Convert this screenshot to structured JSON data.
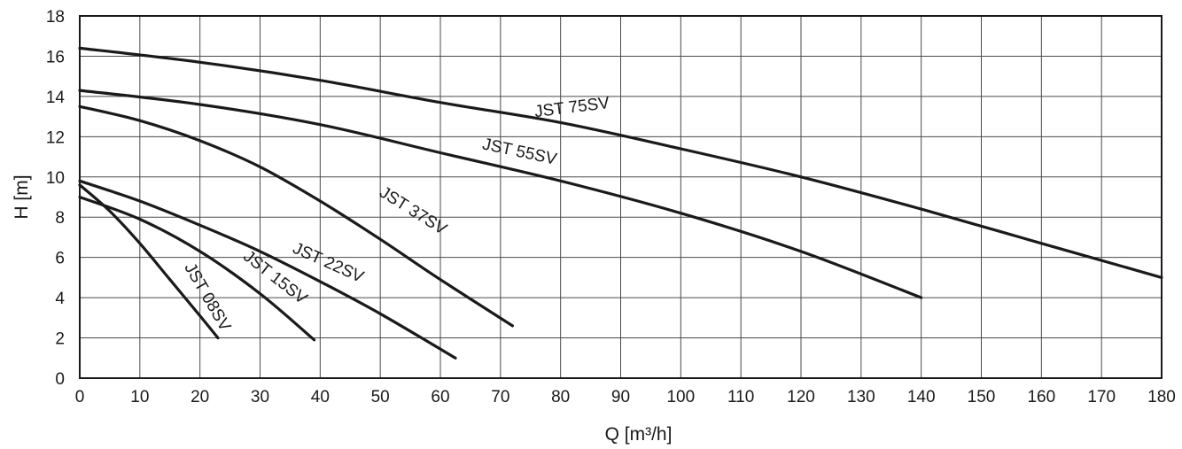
{
  "chart_data": {
    "type": "line",
    "title": "",
    "xlabel": "Q  [m³/h]",
    "ylabel": "H [m]",
    "xlim": [
      0,
      180
    ],
    "ylim": [
      0,
      18
    ],
    "xticks": [
      "0",
      "10",
      "20",
      "30",
      "40",
      "50",
      "60",
      "70",
      "80",
      "90",
      "100",
      "110",
      "120",
      "130",
      "140",
      "150",
      "160",
      "170",
      "180"
    ],
    "yticks": [
      "0",
      "2",
      "4",
      "6",
      "8",
      "10",
      "12",
      "14",
      "16",
      "18"
    ],
    "grid": true,
    "legend": "none",
    "series": [
      {
        "name": "JST 75SV",
        "x": [
          0,
          20,
          40,
          60,
          80,
          100,
          120,
          140,
          160,
          180
        ],
        "y": [
          16.4,
          15.7,
          14.8,
          13.7,
          12.7,
          11.4,
          10.0,
          8.4,
          6.7,
          5.0
        ]
      },
      {
        "name": "JST 55SV",
        "x": [
          0,
          20,
          40,
          60,
          80,
          100,
          120,
          140
        ],
        "y": [
          14.3,
          13.6,
          12.6,
          11.2,
          9.8,
          8.2,
          6.3,
          4.0
        ]
      },
      {
        "name": "JST 37SV",
        "x": [
          0,
          10,
          20,
          30,
          40,
          50,
          60,
          72
        ],
        "y": [
          13.5,
          12.8,
          11.8,
          10.5,
          8.8,
          6.9,
          4.9,
          2.6
        ]
      },
      {
        "name": "JST 22SV",
        "x": [
          0,
          10,
          20,
          30,
          40,
          50,
          62.5
        ],
        "y": [
          9.8,
          8.8,
          7.6,
          6.3,
          4.8,
          3.2,
          1.0
        ]
      },
      {
        "name": "JST 15SV",
        "x": [
          0,
          10,
          20,
          30,
          39
        ],
        "y": [
          9.0,
          7.9,
          6.3,
          4.2,
          1.9
        ]
      },
      {
        "name": "JST 08SV",
        "x": [
          0,
          5,
          10,
          15,
          20,
          23
        ],
        "y": [
          9.6,
          8.3,
          6.7,
          4.9,
          3.1,
          2.0
        ]
      }
    ],
    "labels": [
      {
        "text": "JST 75SV",
        "x": 82,
        "y": 13.2,
        "angle": -7
      },
      {
        "text": "JST 55SV",
        "x": 73,
        "y": 11.0,
        "angle": 12
      },
      {
        "text": "JST 37SV",
        "x": 55,
        "y": 8.1,
        "angle": 32
      },
      {
        "text": "JST 22SV",
        "x": 41,
        "y": 5.5,
        "angle": 24
      },
      {
        "text": "JST 15SV",
        "x": 32,
        "y": 4.8,
        "angle": 38
      },
      {
        "text": "JST 08SV",
        "x": 20.5,
        "y": 3.9,
        "angle": 60
      }
    ]
  }
}
